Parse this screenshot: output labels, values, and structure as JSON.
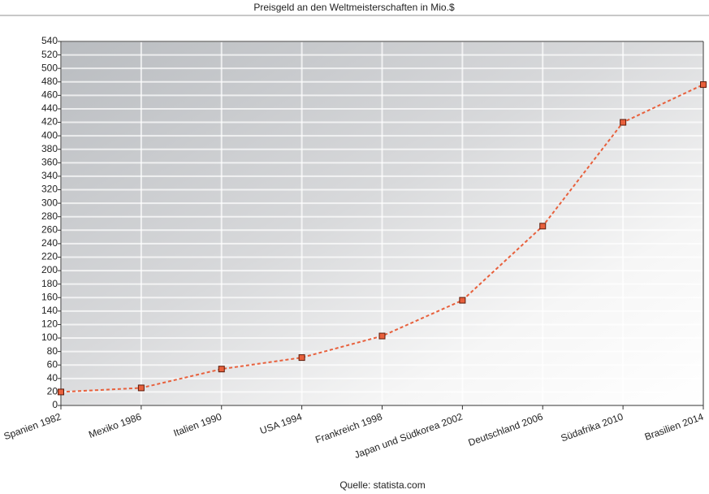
{
  "chart_data": {
    "type": "line",
    "title": "Preisgeld an den Weltmeisterschaften in Mio.$",
    "categories": [
      "Spanien 1982",
      "Mexiko 1986",
      "Italien 1990",
      "USA 1994",
      "Frankreich 1998",
      "Japan und Südkorea 2002",
      "Deutschland 2006",
      "Südafrika 2010",
      "Brasilien 2014"
    ],
    "values": [
      20,
      26,
      54,
      71,
      103,
      156,
      266,
      420,
      476
    ],
    "color": "#e8603c",
    "ylim": [
      0,
      540
    ],
    "yticks": [
      0,
      20,
      40,
      60,
      80,
      100,
      120,
      140,
      160,
      180,
      200,
      220,
      240,
      260,
      280,
      300,
      320,
      340,
      360,
      380,
      400,
      420,
      440,
      460,
      480,
      500,
      520,
      540
    ],
    "grid": true,
    "source": "Quelle: statista.com"
  }
}
